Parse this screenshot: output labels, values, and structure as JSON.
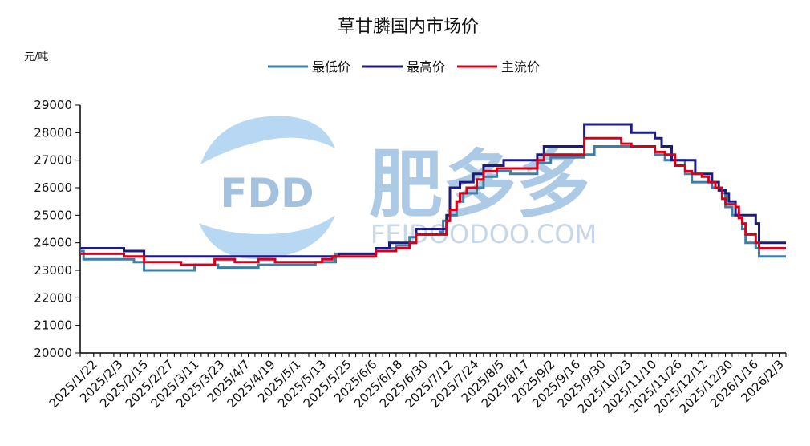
{
  "chart_data": {
    "type": "line",
    "title": "草甘膦国内市场价",
    "ylabel": "元/吨",
    "ylim": [
      20000,
      29000
    ],
    "yticks": [
      20000,
      21000,
      22000,
      23000,
      24000,
      25000,
      26000,
      27000,
      28000,
      29000
    ],
    "xticks": [
      "2025/1/22",
      "2025/2/3",
      "2025/2/15",
      "2025/2/27",
      "2025/3/11",
      "2025/3/23",
      "2025/4/7",
      "2025/4/19",
      "2025/5/1",
      "2025/5/13",
      "2025/5/25",
      "2025/6/6",
      "2025/6/18",
      "2025/6/30",
      "2025/7/12",
      "2025/7/24",
      "2025/8/5",
      "2025/8/17",
      "2025/9/2",
      "2025/9/16",
      "2025/9/30",
      "2025/10/23",
      "2025/11/10",
      "2025/11/26",
      "2025/12/12",
      "2025/12/30",
      "2026/1/16",
      "2026/2/3"
    ],
    "legend_position": "top-center",
    "grid": false,
    "watermark": {
      "logo_text": "FDD",
      "brand_text": "肥多多",
      "url_text": "FEIDOODOO.COM"
    },
    "series": [
      {
        "name": "最低价",
        "color": "#3d7fa6",
        "points": [
          [
            0,
            23700
          ],
          [
            1,
            23400
          ],
          [
            10,
            23400
          ],
          [
            16,
            23300
          ],
          [
            17,
            23300
          ],
          [
            19,
            23000
          ],
          [
            30,
            23000
          ],
          [
            34,
            23200
          ],
          [
            39,
            23200
          ],
          [
            41,
            23100
          ],
          [
            52,
            23100
          ],
          [
            53,
            23200
          ],
          [
            68,
            23200
          ],
          [
            70,
            23300
          ],
          [
            75,
            23300
          ],
          [
            76,
            23600
          ],
          [
            86,
            23600
          ],
          [
            88,
            23800
          ],
          [
            94,
            23900
          ],
          [
            98,
            24200
          ],
          [
            100,
            24300
          ],
          [
            105,
            24300
          ],
          [
            107,
            24400
          ],
          [
            108,
            24800
          ],
          [
            110,
            25000
          ],
          [
            112,
            25500
          ],
          [
            114,
            25800
          ],
          [
            116,
            25800
          ],
          [
            118,
            26000
          ],
          [
            120,
            26400
          ],
          [
            124,
            26600
          ],
          [
            128,
            26500
          ],
          [
            134,
            26500
          ],
          [
            136,
            26900
          ],
          [
            140,
            27100
          ],
          [
            150,
            27200
          ],
          [
            153,
            27500
          ],
          [
            168,
            27500
          ],
          [
            170,
            27500
          ],
          [
            171,
            27200
          ],
          [
            174,
            27000
          ],
          [
            178,
            27000
          ],
          [
            180,
            26500
          ],
          [
            182,
            26200
          ],
          [
            187,
            26200
          ],
          [
            188,
            26000
          ],
          [
            191,
            25800
          ],
          [
            192,
            25300
          ],
          [
            194,
            25000
          ],
          [
            196,
            24900
          ],
          [
            197,
            24500
          ],
          [
            198,
            24000
          ],
          [
            200,
            24000
          ],
          [
            201,
            23800
          ],
          [
            202,
            23500
          ],
          [
            210,
            23500
          ]
        ]
      },
      {
        "name": "最高价",
        "color": "#1d1b80",
        "points": [
          [
            0,
            23800
          ],
          [
            12,
            23800
          ],
          [
            13,
            23700
          ],
          [
            17,
            23700
          ],
          [
            19,
            23500
          ],
          [
            76,
            23500
          ],
          [
            77,
            23600
          ],
          [
            86,
            23600
          ],
          [
            88,
            23800
          ],
          [
            92,
            24000
          ],
          [
            98,
            24000
          ],
          [
            100,
            24500
          ],
          [
            108,
            24500
          ],
          [
            109,
            25000
          ],
          [
            110,
            26000
          ],
          [
            112,
            26000
          ],
          [
            113,
            26200
          ],
          [
            115,
            26200
          ],
          [
            117,
            26500
          ],
          [
            120,
            26800
          ],
          [
            124,
            26800
          ],
          [
            126,
            27000
          ],
          [
            134,
            27000
          ],
          [
            136,
            27200
          ],
          [
            138,
            27500
          ],
          [
            148,
            27500
          ],
          [
            150,
            28300
          ],
          [
            163,
            28300
          ],
          [
            164,
            28000
          ],
          [
            170,
            28000
          ],
          [
            171,
            27800
          ],
          [
            173,
            27500
          ],
          [
            175,
            27500
          ],
          [
            176,
            27000
          ],
          [
            182,
            27000
          ],
          [
            183,
            26500
          ],
          [
            187,
            26500
          ],
          [
            188,
            26200
          ],
          [
            190,
            25900
          ],
          [
            192,
            25800
          ],
          [
            193,
            25500
          ],
          [
            195,
            25000
          ],
          [
            200,
            25000
          ],
          [
            201,
            24700
          ],
          [
            202,
            24000
          ],
          [
            210,
            24000
          ]
        ]
      },
      {
        "name": "主流价",
        "color": "#d7001a",
        "points": [
          [
            0,
            23600
          ],
          [
            12,
            23600
          ],
          [
            13,
            23500
          ],
          [
            17,
            23500
          ],
          [
            19,
            23300
          ],
          [
            28,
            23300
          ],
          [
            30,
            23200
          ],
          [
            38,
            23200
          ],
          [
            40,
            23400
          ],
          [
            45,
            23400
          ],
          [
            46,
            23300
          ],
          [
            52,
            23300
          ],
          [
            53,
            23400
          ],
          [
            56,
            23400
          ],
          [
            58,
            23300
          ],
          [
            70,
            23300
          ],
          [
            72,
            23400
          ],
          [
            75,
            23500
          ],
          [
            86,
            23500
          ],
          [
            88,
            23700
          ],
          [
            90,
            23700
          ],
          [
            94,
            23800
          ],
          [
            98,
            24000
          ],
          [
            100,
            24300
          ],
          [
            108,
            24300
          ],
          [
            109,
            24800
          ],
          [
            110,
            25200
          ],
          [
            112,
            25500
          ],
          [
            113,
            25800
          ],
          [
            115,
            26000
          ],
          [
            117,
            26000
          ],
          [
            118,
            26300
          ],
          [
            120,
            26600
          ],
          [
            122,
            26600
          ],
          [
            124,
            26700
          ],
          [
            134,
            26700
          ],
          [
            136,
            27000
          ],
          [
            138,
            27200
          ],
          [
            148,
            27200
          ],
          [
            150,
            27800
          ],
          [
            160,
            27800
          ],
          [
            161,
            27600
          ],
          [
            164,
            27500
          ],
          [
            170,
            27500
          ],
          [
            171,
            27300
          ],
          [
            174,
            27200
          ],
          [
            176,
            27200
          ],
          [
            177,
            26800
          ],
          [
            179,
            26800
          ],
          [
            180,
            26600
          ],
          [
            182,
            26500
          ],
          [
            185,
            26400
          ],
          [
            187,
            26200
          ],
          [
            189,
            26000
          ],
          [
            191,
            25600
          ],
          [
            192,
            25400
          ],
          [
            195,
            25300
          ],
          [
            196,
            24900
          ],
          [
            197,
            24700
          ],
          [
            198,
            24300
          ],
          [
            200,
            24300
          ],
          [
            201,
            24000
          ],
          [
            202,
            23800
          ],
          [
            210,
            23800
          ]
        ]
      }
    ]
  }
}
